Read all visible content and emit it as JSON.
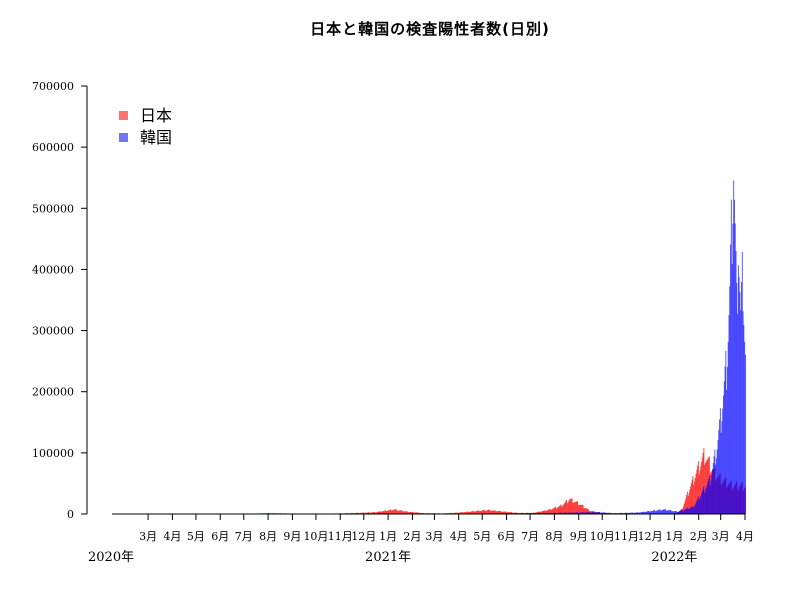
{
  "chart_data": {
    "type": "bar",
    "title": "日本と韓国の検査陽性者数(日別)",
    "xlabel": "",
    "ylabel": "",
    "ylim": [
      0,
      700000
    ],
    "yticks": [
      0,
      100000,
      200000,
      300000,
      400000,
      500000,
      600000,
      700000
    ],
    "ytick_labels": [
      "0",
      "100000",
      "200000",
      "300000",
      "400000",
      "500000",
      "600000",
      "700000"
    ],
    "x_start": "2020-01-15",
    "x_end": "2022-04-01",
    "month_ticks": [
      {
        "date": "2020-03-01",
        "label": "3月"
      },
      {
        "date": "2020-04-01",
        "label": "4月"
      },
      {
        "date": "2020-05-01",
        "label": "5月"
      },
      {
        "date": "2020-06-01",
        "label": "6月"
      },
      {
        "date": "2020-07-01",
        "label": "7月"
      },
      {
        "date": "2020-08-01",
        "label": "8月"
      },
      {
        "date": "2020-09-01",
        "label": "9月"
      },
      {
        "date": "2020-10-01",
        "label": "10月"
      },
      {
        "date": "2020-11-01",
        "label": "11月"
      },
      {
        "date": "2020-12-01",
        "label": "12月"
      },
      {
        "date": "2021-01-01",
        "label": "1月"
      },
      {
        "date": "2021-02-01",
        "label": "2月"
      },
      {
        "date": "2021-03-01",
        "label": "3月"
      },
      {
        "date": "2021-04-01",
        "label": "4月"
      },
      {
        "date": "2021-05-01",
        "label": "5月"
      },
      {
        "date": "2021-06-01",
        "label": "6月"
      },
      {
        "date": "2021-07-01",
        "label": "7月"
      },
      {
        "date": "2021-08-01",
        "label": "8月"
      },
      {
        "date": "2021-09-01",
        "label": "9月"
      },
      {
        "date": "2021-10-01",
        "label": "10月"
      },
      {
        "date": "2021-11-01",
        "label": "11月"
      },
      {
        "date": "2021-12-01",
        "label": "12月"
      },
      {
        "date": "2022-01-01",
        "label": "1月"
      },
      {
        "date": "2022-02-01",
        "label": "2月"
      },
      {
        "date": "2022-03-01",
        "label": "3月"
      },
      {
        "date": "2022-04-01",
        "label": "4月"
      }
    ],
    "year_labels": [
      {
        "date": "2020-01-15",
        "label": "2020年"
      },
      {
        "date": "2021-01-01",
        "label": "2021年"
      },
      {
        "date": "2022-01-01",
        "label": "2022年"
      }
    ],
    "legend_position": "top-left",
    "grid": false,
    "series": [
      {
        "name": "日本",
        "color": "#ff0000",
        "points": [
          [
            "2020-01-15",
            0
          ],
          [
            "2020-03-15",
            50
          ],
          [
            "2020-04-11",
            700
          ],
          [
            "2020-05-20",
            50
          ],
          [
            "2020-07-01",
            200
          ],
          [
            "2020-07-31",
            1500
          ],
          [
            "2020-08-15",
            1200
          ],
          [
            "2020-09-15",
            500
          ],
          [
            "2020-10-15",
            600
          ],
          [
            "2020-11-15",
            1500
          ],
          [
            "2020-12-15",
            3000
          ],
          [
            "2021-01-08",
            7800
          ],
          [
            "2021-01-25",
            4000
          ],
          [
            "2021-02-15",
            1500
          ],
          [
            "2021-03-10",
            1000
          ],
          [
            "2021-04-01",
            2500
          ],
          [
            "2021-05-08",
            7000
          ],
          [
            "2021-05-25",
            4500
          ],
          [
            "2021-06-15",
            1800
          ],
          [
            "2021-07-05",
            2000
          ],
          [
            "2021-07-25",
            7500
          ],
          [
            "2021-08-10",
            15000
          ],
          [
            "2021-08-20",
            25800
          ],
          [
            "2021-09-01",
            18000
          ],
          [
            "2021-09-15",
            5500
          ],
          [
            "2021-10-01",
            1500
          ],
          [
            "2021-10-20",
            300
          ],
          [
            "2021-11-15",
            150
          ],
          [
            "2021-12-15",
            200
          ],
          [
            "2022-01-01",
            500
          ],
          [
            "2022-01-10",
            8000
          ],
          [
            "2022-01-20",
            45000
          ],
          [
            "2022-01-31",
            80000
          ],
          [
            "2022-02-08",
            103000
          ],
          [
            "2022-02-20",
            72000
          ],
          [
            "2022-03-01",
            60000
          ],
          [
            "2022-03-15",
            50000
          ],
          [
            "2022-03-31",
            48000
          ],
          [
            "2022-04-01",
            48000
          ]
        ]
      },
      {
        "name": "韓国",
        "color": "#0000ff",
        "points": [
          [
            "2020-01-15",
            0
          ],
          [
            "2020-02-29",
            900
          ],
          [
            "2020-03-15",
            100
          ],
          [
            "2020-08-27",
            440
          ],
          [
            "2020-12-25",
            1200
          ],
          [
            "2021-01-15",
            500
          ],
          [
            "2021-04-15",
            700
          ],
          [
            "2021-07-25",
            1800
          ],
          [
            "2021-09-25",
            3200
          ],
          [
            "2021-10-15",
            1500
          ],
          [
            "2021-11-15",
            2500
          ],
          [
            "2021-12-18",
            7800
          ],
          [
            "2022-01-05",
            4000
          ],
          [
            "2022-01-25",
            13000
          ],
          [
            "2022-02-05",
            38000
          ],
          [
            "2022-02-15",
            60000
          ],
          [
            "2022-02-23",
            110000
          ],
          [
            "2022-03-01",
            170000
          ],
          [
            "2022-03-08",
            260000
          ],
          [
            "2022-03-12",
            380000
          ],
          [
            "2022-03-17",
            620000
          ],
          [
            "2022-03-21",
            350000
          ],
          [
            "2022-03-23",
            490000
          ],
          [
            "2022-03-26",
            340000
          ],
          [
            "2022-03-29",
            425000
          ],
          [
            "2022-03-31",
            320000
          ],
          [
            "2022-04-01",
            280000
          ]
        ]
      }
    ]
  }
}
